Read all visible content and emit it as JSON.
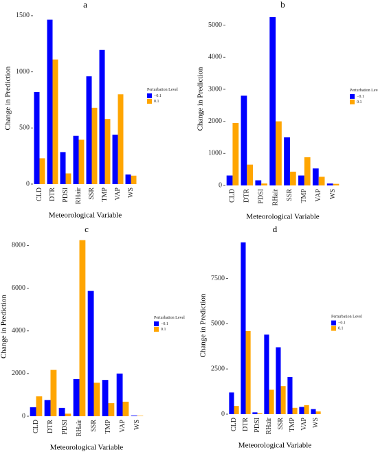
{
  "chart_data": [
    {
      "type": "bar",
      "title": "a",
      "xlabel": "Meteorological Variable",
      "ylabel": "Change in Prediction",
      "legend_title": "Perturbation Level",
      "categories": [
        "CLD",
        "DTR",
        "PDSI",
        "RHair",
        "SSR",
        "TMP",
        "VAP",
        "WS"
      ],
      "series": [
        {
          "name": "−0.1",
          "color": "#0000ff",
          "values": [
            820,
            1465,
            285,
            430,
            960,
            1195,
            440,
            85
          ]
        },
        {
          "name": "0.1",
          "color": "#ffa500",
          "values": [
            230,
            1110,
            95,
            395,
            680,
            580,
            800,
            75
          ]
        }
      ],
      "ylim": [
        0,
        1530
      ],
      "yticks": [
        0,
        500,
        1000,
        1500
      ]
    },
    {
      "type": "bar",
      "title": "b",
      "xlabel": "Meteorological Variable",
      "ylabel": "Change in Prediction",
      "legend_title": "Perturbation Level",
      "categories": [
        "CLD",
        "DTR",
        "PDSI",
        "RHair",
        "SSR",
        "TMP",
        "VAP",
        "WS"
      ],
      "series": [
        {
          "name": "−0.1",
          "color": "#0000ff",
          "values": [
            310,
            2800,
            160,
            5250,
            1500,
            310,
            530,
            60
          ]
        },
        {
          "name": "0.1",
          "color": "#ffa500",
          "values": [
            1950,
            650,
            60,
            2000,
            430,
            880,
            270,
            50
          ]
        }
      ],
      "ylim": [
        0,
        5400
      ],
      "yticks": [
        0,
        1000,
        2000,
        3000,
        4000,
        5000
      ]
    },
    {
      "type": "bar",
      "title": "c",
      "xlabel": "Meteorological Variable",
      "ylabel": "Change in Prediction",
      "legend_title": "Perturbation Level",
      "categories": [
        "CLD",
        "DTR",
        "PDSI",
        "RHair",
        "SSR",
        "TMP",
        "VAP",
        "WS"
      ],
      "series": [
        {
          "name": "−0.1",
          "color": "#0000ff",
          "values": [
            420,
            760,
            390,
            1740,
            5870,
            1700,
            2000,
            30
          ]
        },
        {
          "name": "0.1",
          "color": "#ffa500",
          "values": [
            930,
            2170,
            120,
            8250,
            1570,
            610,
            680,
            20
          ]
        }
      ],
      "ylim": [
        0,
        8400
      ],
      "yticks": [
        0,
        2000,
        4000,
        6000,
        8000
      ]
    },
    {
      "type": "bar",
      "title": "d",
      "xlabel": "Meteorological Variable",
      "ylabel": "Change in Prediction",
      "legend_title": "Perturbation Level",
      "categories": [
        "CLD",
        "DTR",
        "PDSI",
        "RHair",
        "SSR",
        "TMP",
        "VAP",
        "WS"
      ],
      "series": [
        {
          "name": "−0.1",
          "color": "#0000ff",
          "values": [
            1200,
            9500,
            100,
            4400,
            3700,
            2050,
            400,
            280
          ]
        },
        {
          "name": "0.1",
          "color": "#ffa500",
          "values": [
            450,
            4600,
            50,
            1350,
            1550,
            350,
            500,
            150
          ]
        }
      ],
      "ylim": [
        0,
        9800
      ],
      "yticks": [
        0,
        2500,
        5000,
        7500
      ]
    }
  ]
}
